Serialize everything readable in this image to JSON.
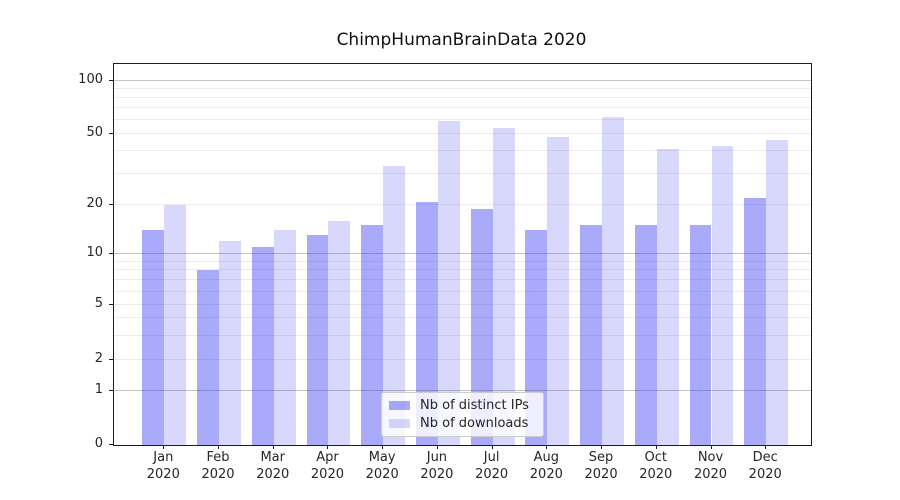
{
  "figure": {
    "background": "#ffffff"
  },
  "chart_data": {
    "type": "bar",
    "title": "ChimpHumanBrainData 2020",
    "categories": [
      "Jan",
      "Feb",
      "Mar",
      "Apr",
      "May",
      "Jun",
      "Jul",
      "Aug",
      "Sep",
      "Oct",
      "Nov",
      "Dec"
    ],
    "category_year": "2020",
    "series": [
      {
        "name": "Nb of distinct IPs",
        "color": "rgba(62,62,246,0.44)",
        "values": [
          14,
          8,
          11,
          13,
          15,
          21,
          19,
          14,
          15,
          15,
          15,
          22
        ]
      },
      {
        "name": "Nb of downloads",
        "color": "rgba(62,62,246,0.20)",
        "values": [
          20,
          12,
          14,
          16,
          33,
          59,
          54,
          48,
          62,
          41,
          43,
          46
        ]
      }
    ],
    "yscale": "asinh",
    "ylim": [
      0,
      122
    ],
    "yticks": [
      0,
      1,
      2,
      5,
      10,
      20,
      50,
      100
    ],
    "ytick_labels": [
      "0",
      "1",
      "2",
      "5",
      "10",
      "20",
      "50",
      "100"
    ],
    "grid": "horizontal",
    "grid_minor_values": [
      3,
      4,
      6,
      7,
      8,
      9,
      30,
      40,
      60,
      70,
      80,
      90
    ],
    "grid_major_values": [
      1,
      10,
      100
    ],
    "legend_position": "lower-center-inside",
    "xlabel": "",
    "ylabel": "",
    "colors": {
      "grid_minor": "#ececec",
      "grid_major": "#c3c3c3",
      "spine": "#1c1c1c",
      "tick_text": "#262626"
    }
  }
}
